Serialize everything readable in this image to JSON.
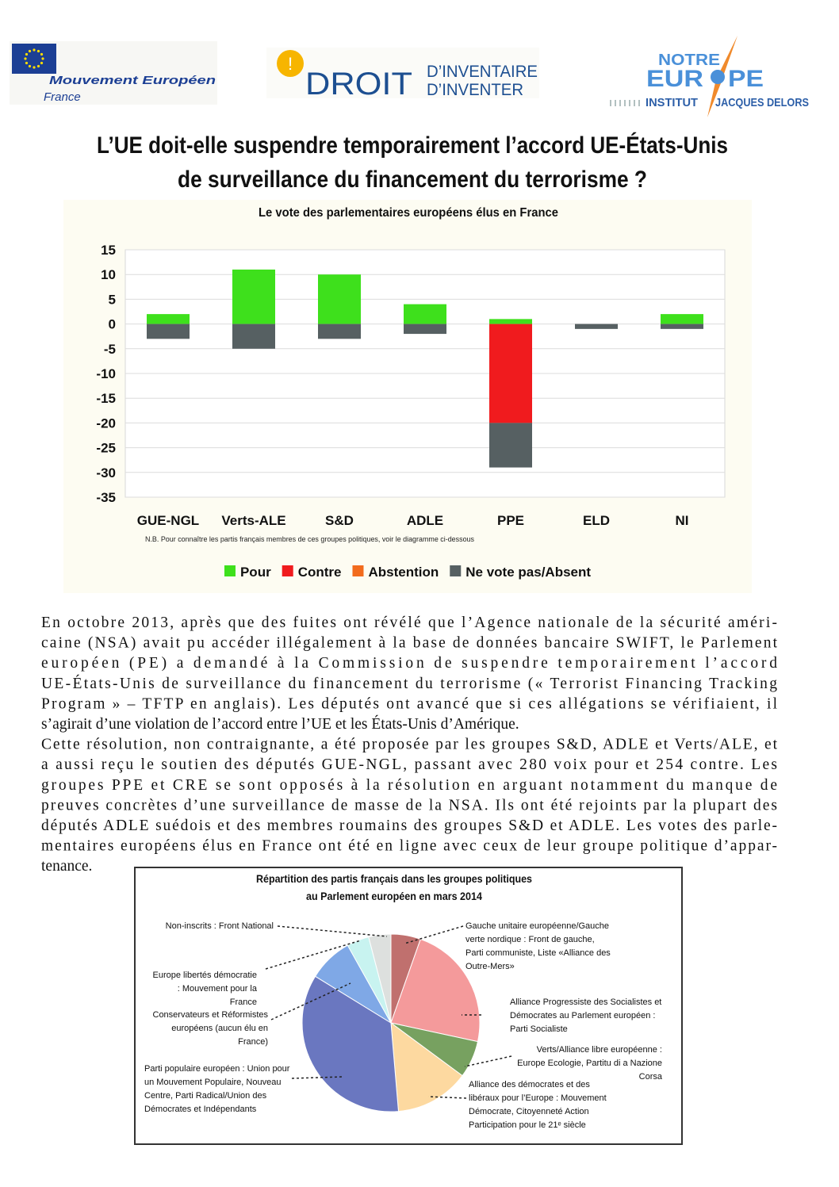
{
  "logo_mouvement": {
    "name": "Mouvement Européen",
    "country": "France"
  },
  "logo_droit": {
    "mark": "!",
    "word": "DROIT",
    "line1": "D’INVENTAIRE",
    "line2": "D’INVENTER"
  },
  "logo_notre_europe": {
    "line1": "NOTRE",
    "europe_start": "EUR",
    "europe_end": "PE",
    "institut": "INSTITUT",
    "delors": "JACQUES DELORS"
  },
  "title": [
    "L’UE doit-elle suspendre temporairement l’accord UE-États-Unis",
    "de surveillance du financement du terrorisme ?"
  ],
  "chart_data": [
    {
      "type": "bar",
      "stacked": true,
      "title": "Le vote des parlementaires européens élus en France",
      "categories": [
        "GUE-NGL",
        "Verts-ALE",
        "S&D",
        "ADLE",
        "PPE",
        "ELD",
        "NI"
      ],
      "series": [
        {
          "name": "Pour",
          "color": "#3ee01c",
          "values": [
            2,
            11,
            10,
            4,
            1,
            0,
            2
          ]
        },
        {
          "name": "Contre",
          "color": "#f01b1e",
          "values": [
            0,
            0,
            0,
            0,
            -20,
            0,
            0
          ]
        },
        {
          "name": "Abstention",
          "color": "#f26b1d",
          "values": [
            0,
            0,
            0,
            0,
            0,
            0,
            0
          ]
        },
        {
          "name": "Ne vote pas/Absent",
          "color": "#566062",
          "values": [
            -3,
            -5,
            -3,
            -2,
            -9,
            -1,
            -1
          ]
        }
      ],
      "ylim": [
        -35,
        15
      ],
      "yticks": [
        15,
        10,
        5,
        0,
        -5,
        -10,
        -15,
        -20,
        -25,
        -30,
        -35
      ],
      "grid": true,
      "legend": "bottom",
      "note": "N.B. Pour connaître les partis français membres de ces groupes politiques, voir le diagramme ci-dessous"
    },
    {
      "type": "pie",
      "title": [
        "Répartition des partis français dans les groupes politiques",
        "au Parlement européen en mars 2014"
      ],
      "categories": [
        "Gauche unitaire européenne/Gauche verte nordique : Front de gauche, Parti communiste, Liste «Alliance des Outre-Mers»",
        "Alliance Progressiste des Socialistes et Démocrates au Parlement européen : Parti Socialiste",
        "Verts/Alliance libre européenne : Europe Ecologie, Partitu di a Nazione Corsa",
        "Alliance des démocrates et des libéraux pour l’Europe : Mouvement Démocrate, Citoyenneté Action Participation pour le 21ᵉ siècle",
        "Parti populaire européen : Union pour un Mouvement Populaire, Nouveau Centre, Parti Radical/Union des Démocrates et Indépendants",
        "Conservateurs et Réformistes européens (aucun élu en France)",
        "Europe libertés démocratie : Mouvement pour la France",
        "Non-inscrits : Front National"
      ],
      "values": [
        4,
        17,
        5,
        10,
        26,
        6,
        3,
        3
      ],
      "colors": [
        "#c0706e",
        "#f49a9b",
        "#77a160",
        "#fdd9a0",
        "#6a77c0",
        "#7fa8e6",
        "#c8f3f0",
        "#dde0de"
      ]
    }
  ],
  "paragraphs": [
    [
      "En octobre 2013, après que des fuites ont révélé que l’Agence nationale de la sécurité améri-",
      "caine (NSA) avait pu accéder illégalement à la base de données bancaire SWIFT, le Parlement",
      "européen (PE) a demandé à la Commission de suspendre temporairement l’accord",
      "UE-États-Unis de surveillance du financement du terrorisme (« Terrorist Financing Tracking",
      "Program » – TFTP en anglais). Les députés ont avancé que si ces allégations se vérifiaient, il",
      "s’agirait d’une violation de l’accord entre l’UE et les États-Unis d’Amérique."
    ],
    [
      "Cette résolution, non contraignante, a été proposée par les groupes S&D, ADLE et Verts/ALE, et",
      "a aussi reçu le soutien des députés GUE-NGL, passant avec 280 voix pour et 254 contre. Les",
      "groupes PPE et CRE se sont opposés à la résolution en arguant notamment du manque de",
      "preuves concrètes d’une surveillance de masse de la NSA. Ils ont été rejoints par la plupart des",
      "députés ADLE suédois et des membres roumains des groupes S&D et ADLE. Les votes des parle-",
      "mentaires européens élus en France ont été en ligne avec ceux de leur groupe politique d’appar-",
      "tenance."
    ]
  ]
}
